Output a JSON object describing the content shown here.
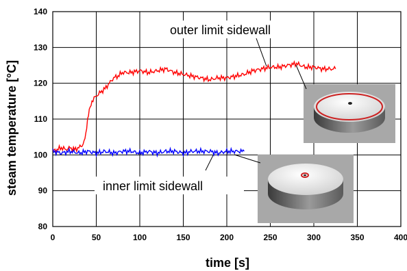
{
  "chart_data": {
    "type": "line",
    "xlabel": "time [s]",
    "ylabel": "steam temperature [°C]",
    "xlim": [
      0,
      400
    ],
    "ylim": [
      80,
      140
    ],
    "x_ticks": [
      0,
      50,
      100,
      150,
      200,
      250,
      300,
      350,
      400
    ],
    "y_ticks": [
      80,
      90,
      100,
      110,
      120,
      130,
      140
    ],
    "grid": true,
    "series": [
      {
        "name": "outer limit sidewall",
        "color": "#ff0000",
        "x": [
          0,
          5,
          10,
          15,
          20,
          25,
          30,
          35,
          38,
          40,
          42,
          45,
          50,
          55,
          60,
          65,
          70,
          75,
          80,
          90,
          100,
          110,
          120,
          130,
          140,
          150,
          160,
          170,
          180,
          190,
          200,
          210,
          220,
          230,
          240,
          250,
          260,
          270,
          280,
          290,
          300,
          310,
          320,
          325
        ],
        "y": [
          101,
          101.5,
          102,
          101.5,
          102,
          101.5,
          102,
          103,
          106,
          110,
          113,
          115,
          116.5,
          117.5,
          118.5,
          120,
          121.5,
          122,
          123,
          123,
          123.5,
          123,
          123.5,
          124,
          123,
          122.5,
          122,
          121.5,
          121,
          121.5,
          121.5,
          122,
          122.5,
          123.5,
          124,
          124.5,
          124.5,
          125,
          125.5,
          124.5,
          124.5,
          124,
          124,
          124
        ]
      },
      {
        "name": "inner limit sidewall",
        "color": "#0000ff",
        "x": [
          0,
          10,
          20,
          30,
          40,
          50,
          60,
          70,
          80,
          90,
          100,
          110,
          120,
          130,
          140,
          150,
          160,
          170,
          180,
          190,
          200,
          210,
          220
        ],
        "y": [
          101,
          100.5,
          101,
          100.5,
          101,
          100.5,
          101,
          100.5,
          101,
          101,
          100.5,
          101,
          100.5,
          101,
          101,
          100.5,
          101,
          101,
          101,
          100.5,
          101,
          101,
          101
        ]
      }
    ]
  },
  "annotations": {
    "outer_label": "outer limit sidewall",
    "inner_label": "inner limit sidewall"
  },
  "colors": {
    "plot_background": "#ffffff",
    "grid": "#000000",
    "inset_background": "#a8a8a8"
  }
}
